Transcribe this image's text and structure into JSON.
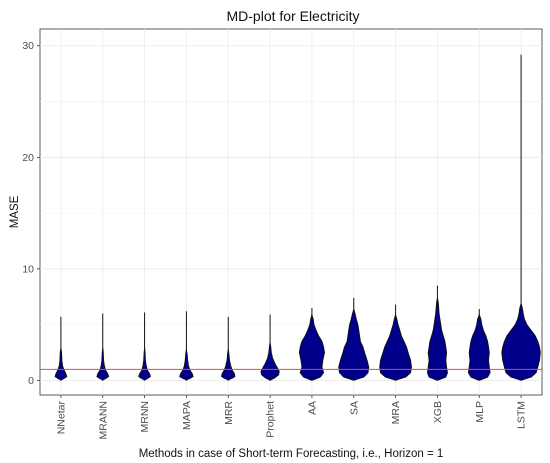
{
  "chart_data": {
    "type": "violin",
    "title": "MD-plot for Electricity",
    "xlabel": "Methods in case of Short-term Forecasting, i.e., Horizon = 1",
    "ylabel": "MASE",
    "ylim": [
      -1.3,
      31.5
    ],
    "yticks": [
      0,
      10,
      20,
      30
    ],
    "grid": true,
    "reference_line": {
      "value": 1,
      "color": "#e74c3c"
    },
    "fill_color": "#00008b",
    "outline_color": "#111111",
    "categories": [
      "NNetar",
      "MRANN",
      "MRNN",
      "MAPA",
      "MRR",
      "Prophet",
      "AA",
      "SA",
      "MRA",
      "XGB",
      "MLP",
      "LSTM"
    ],
    "series": [
      {
        "category": "NNetar",
        "max": 5.7,
        "profile": [
          [
            0.1,
            1.5
          ],
          [
            0.2,
            4
          ],
          [
            0.35,
            7
          ],
          [
            0.6,
            6
          ],
          [
            0.9,
            4
          ],
          [
            1.3,
            2
          ],
          [
            1.8,
            1.2
          ],
          [
            2.5,
            0.8
          ]
        ]
      },
      {
        "category": "MRANN",
        "max": 6.0,
        "profile": [
          [
            0.1,
            1.5
          ],
          [
            0.2,
            4
          ],
          [
            0.35,
            7
          ],
          [
            0.6,
            6
          ],
          [
            0.9,
            3.5
          ],
          [
            1.3,
            2
          ],
          [
            1.8,
            1
          ],
          [
            2.5,
            0.6
          ]
        ]
      },
      {
        "category": "MRNN",
        "max": 6.1,
        "profile": [
          [
            0.1,
            1.5
          ],
          [
            0.2,
            4
          ],
          [
            0.35,
            7
          ],
          [
            0.6,
            6
          ],
          [
            0.9,
            3.5
          ],
          [
            1.3,
            2
          ],
          [
            1.8,
            1
          ],
          [
            2.5,
            0.6
          ]
        ]
      },
      {
        "category": "MAPA",
        "max": 6.2,
        "profile": [
          [
            0.1,
            1.5
          ],
          [
            0.2,
            4.5
          ],
          [
            0.35,
            8
          ],
          [
            0.6,
            7
          ],
          [
            0.9,
            4.5
          ],
          [
            1.3,
            2.5
          ],
          [
            1.8,
            1.5
          ],
          [
            2.4,
            0.8
          ]
        ]
      },
      {
        "category": "MRR",
        "max": 5.7,
        "profile": [
          [
            0.1,
            1.5
          ],
          [
            0.2,
            4.5
          ],
          [
            0.35,
            8
          ],
          [
            0.6,
            7.5
          ],
          [
            0.9,
            5
          ],
          [
            1.3,
            3
          ],
          [
            1.8,
            1.5
          ],
          [
            2.4,
            0.8
          ]
        ]
      },
      {
        "category": "Prophet",
        "max": 5.9,
        "profile": [
          [
            0.1,
            2
          ],
          [
            0.25,
            6
          ],
          [
            0.5,
            10
          ],
          [
            0.8,
            11
          ],
          [
            1.1,
            9
          ],
          [
            1.5,
            6
          ],
          [
            2,
            3
          ],
          [
            2.5,
            1.5
          ],
          [
            3,
            0.8
          ]
        ]
      },
      {
        "category": "AA",
        "max": 6.5,
        "profile": [
          [
            0.1,
            3
          ],
          [
            0.3,
            10
          ],
          [
            0.7,
            14
          ],
          [
            1.2,
            12
          ],
          [
            1.8,
            13
          ],
          [
            2.5,
            15
          ],
          [
            3,
            14
          ],
          [
            3.5,
            12
          ],
          [
            4,
            8
          ],
          [
            4.5,
            5
          ],
          [
            5,
            2.5
          ],
          [
            5.5,
            1.5
          ]
        ]
      },
      {
        "category": "SA",
        "max": 7.4,
        "profile": [
          [
            0.1,
            3
          ],
          [
            0.3,
            12
          ],
          [
            0.7,
            17
          ],
          [
            1.2,
            18
          ],
          [
            1.8,
            16
          ],
          [
            2.5,
            13
          ],
          [
            3,
            11
          ],
          [
            3.5,
            8
          ],
          [
            4,
            7
          ],
          [
            4.5,
            6
          ],
          [
            5,
            5
          ],
          [
            5.5,
            3
          ],
          [
            6,
            1.5
          ]
        ]
      },
      {
        "category": "MRA",
        "max": 6.8,
        "profile": [
          [
            0.1,
            3
          ],
          [
            0.3,
            12
          ],
          [
            0.7,
            18
          ],
          [
            1.2,
            19
          ],
          [
            1.8,
            18
          ],
          [
            2.5,
            15
          ],
          [
            3,
            13
          ],
          [
            3.5,
            10
          ],
          [
            4,
            7
          ],
          [
            4.5,
            5
          ],
          [
            5,
            3
          ],
          [
            5.5,
            1.5
          ]
        ]
      },
      {
        "category": "XGB",
        "max": 8.5,
        "profile": [
          [
            0.1,
            3
          ],
          [
            0.3,
            10
          ],
          [
            0.7,
            12
          ],
          [
            1.2,
            11
          ],
          [
            1.8,
            10
          ],
          [
            2.5,
            11
          ],
          [
            3,
            10
          ],
          [
            3.5,
            9
          ],
          [
            4,
            7
          ],
          [
            4.5,
            5
          ],
          [
            5,
            4
          ],
          [
            5.5,
            3
          ],
          [
            6,
            2
          ],
          [
            6.5,
            1.5
          ],
          [
            7,
            1
          ]
        ]
      },
      {
        "category": "MLP",
        "max": 6.4,
        "profile": [
          [
            0.1,
            3
          ],
          [
            0.3,
            10
          ],
          [
            0.7,
            13
          ],
          [
            1.2,
            12
          ],
          [
            1.8,
            11
          ],
          [
            2.5,
            12
          ],
          [
            3,
            11
          ],
          [
            3.5,
            10
          ],
          [
            4,
            8
          ],
          [
            4.5,
            5
          ],
          [
            5,
            3
          ],
          [
            5.5,
            2
          ]
        ]
      },
      {
        "category": "LSTM",
        "max": 29.2,
        "profile": [
          [
            0.1,
            3
          ],
          [
            0.3,
            12
          ],
          [
            0.7,
            18
          ],
          [
            1.2,
            20
          ],
          [
            1.8,
            22
          ],
          [
            2.5,
            23
          ],
          [
            3,
            22
          ],
          [
            3.5,
            20
          ],
          [
            4,
            17
          ],
          [
            4.5,
            12
          ],
          [
            5,
            7
          ],
          [
            5.5,
            4
          ],
          [
            6,
            2.5
          ],
          [
            6.5,
            1.5
          ]
        ]
      }
    ]
  }
}
